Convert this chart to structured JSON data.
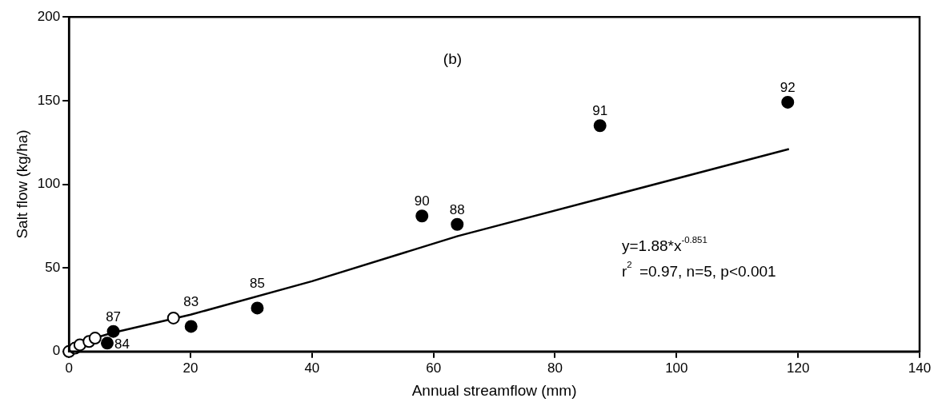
{
  "chart_data": {
    "type": "scatter",
    "xlabel": "Annual streamflow (mm)",
    "ylabel": "Salt flow (kg/ha)",
    "xlim": [
      0,
      140
    ],
    "xticks": [
      0,
      20,
      40,
      60,
      80,
      100,
      120,
      140
    ],
    "ylim": [
      0,
      200
    ],
    "yticks": [
      0,
      50,
      100,
      150,
      200
    ],
    "grid": false,
    "legend": false,
    "marker": "circle",
    "series": [
      {
        "color": "#000000",
        "x": [
          118.3,
          87.4,
          58.1,
          63.9,
          31,
          20.1,
          7.3,
          6.3
        ],
        "values": [
          149,
          135,
          81,
          76,
          26,
          15,
          12,
          5
        ]
      },
      {
        "color": "#ffffff",
        "x": [
          0,
          1,
          1.8,
          3.3,
          4.3,
          17.2
        ],
        "values": [
          0,
          2,
          4,
          6,
          8,
          20
        ]
      },
      {
        "type": "line",
        "color": "#000000",
        "marker": "none",
        "x": [
          0.5,
          7,
          20,
          40,
          64,
          118.5
        ],
        "values": [
          4,
          11,
          22,
          42,
          69,
          121
        ]
      }
    ],
    "annotations": [
      "(b)",
      "y=1.88*x$^{-0.851}$",
      "r$^{2}$ =0.97, n=5, p<0.001",
      {
        "text": "92",
        "x": 118.3,
        "y": 149
      },
      {
        "text": "91",
        "x": 87.4,
        "y": 135
      },
      {
        "text": "90",
        "x": 58.1,
        "y": 81
      },
      {
        "text": "88",
        "x": 63.9,
        "y": 76
      },
      {
        "text": "85",
        "x": 31,
        "y": 26
      },
      {
        "text": "83",
        "x": 20.1,
        "y": 15
      },
      {
        "text": "87",
        "x": 7.3,
        "y": 12
      },
      {
        "text": "84",
        "x": 6.3,
        "y": 5
      }
    ]
  }
}
